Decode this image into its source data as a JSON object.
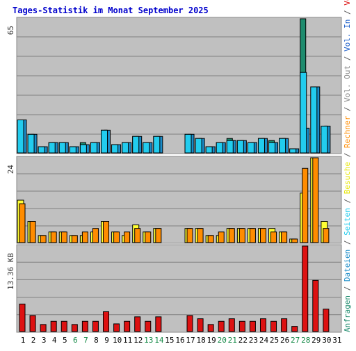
{
  "chart_data": {
    "type": "bar",
    "title": "Tages-Statistik im Monat September 2025",
    "categories": [
      "1",
      "2",
      "3",
      "4",
      "5",
      "6",
      "7",
      "8",
      "9",
      "10",
      "11",
      "12",
      "13",
      "14",
      "15",
      "16",
      "17",
      "18",
      "19",
      "20",
      "21",
      "22",
      "23",
      "24",
      "25",
      "26",
      "27",
      "28",
      "29",
      "30",
      "31"
    ],
    "weekend_days": [
      "6",
      "7",
      "13",
      "14",
      "20",
      "21",
      "27",
      "28"
    ],
    "panels": [
      {
        "id": "top",
        "scale_label": "65",
        "ymax": 65,
        "series": [
          {
            "name": "Anfragen",
            "color": "#1e8c6e",
            "values": [
              16,
              9,
              3,
              5,
              5,
              3,
              5,
              5,
              11,
              4,
              5,
              8,
              5,
              8,
              0,
              0,
              9,
              7,
              3,
              5,
              7,
              6,
              5,
              7,
              6,
              7,
              2,
              65,
              0,
              0,
              0
            ]
          },
          {
            "name": "Dateien",
            "color": "#1a8cc8",
            "values": [
              16,
              9,
              3,
              5,
              5,
              3,
              4,
              5,
              11,
              4,
              5,
              8,
              5,
              8,
              0,
              0,
              9,
              7,
              3,
              5,
              6,
              6,
              5,
              7,
              5,
              7,
              2,
              12,
              32,
              13,
              0
            ]
          },
          {
            "name": "Seiten",
            "color": "#22ccee",
            "values": [
              16,
              9,
              3,
              5,
              5,
              3,
              4,
              5,
              11,
              4,
              5,
              8,
              5,
              8,
              0,
              0,
              9,
              7,
              3,
              5,
              6,
              6,
              5,
              7,
              5,
              7,
              2,
              39,
              32,
              13,
              0
            ]
          }
        ]
      },
      {
        "id": "middle",
        "scale_label": "24",
        "ymax": 24,
        "series": [
          {
            "name": "Besuche",
            "color": "#ffff33",
            "values": [
              12,
              6,
              2,
              3,
              3,
              2,
              2,
              3,
              6,
              3,
              2,
              5,
              3,
              4,
              0,
              0,
              4,
              4,
              2,
              2,
              4,
              4,
              4,
              4,
              4,
              3,
              1,
              14,
              24,
              6,
              0
            ]
          },
          {
            "name": "Rechner",
            "color": "#ff8c00",
            "values": [
              11,
              6,
              2,
              3,
              3,
              2,
              3,
              4,
              6,
              3,
              3,
              4,
              3,
              4,
              0,
              0,
              4,
              4,
              2,
              3,
              4,
              4,
              4,
              4,
              3,
              3,
              1,
              21,
              24,
              4,
              0
            ]
          }
        ]
      },
      {
        "id": "bottom",
        "scale_label": "13.36 KB",
        "ymax": 13.36,
        "series": [
          {
            "name": "Volumen",
            "color": "#dd1111",
            "values": [
              4.3,
              2.5,
              1.1,
              1.6,
              1.6,
              1.1,
              1.6,
              1.6,
              3.1,
              1.2,
              1.6,
              2.3,
              1.6,
              2.3,
              0,
              0,
              2.5,
              2.0,
              1.1,
              1.6,
              2.0,
              1.6,
              1.6,
              2.0,
              1.6,
              2.0,
              0.8,
              13.36,
              8.0,
              3.5,
              0
            ]
          }
        ]
      }
    ],
    "right_legend": [
      {
        "text": "Anfragen",
        "color": "#1e8c6e"
      },
      {
        "text": " / ",
        "color": "#555555"
      },
      {
        "text": "Dateien",
        "color": "#1a8cc8"
      },
      {
        "text": " / ",
        "color": "#555555"
      },
      {
        "text": "Seiten",
        "color": "#22ccee"
      },
      {
        "text": " / ",
        "color": "#555555"
      },
      {
        "text": "Besuche",
        "color": "#e6e600"
      },
      {
        "text": " / ",
        "color": "#555555"
      },
      {
        "text": "Rechner",
        "color": "#ff8c00"
      },
      {
        "text": " / ",
        "color": "#555555"
      },
      {
        "text": "Vol. Out",
        "color": "#8c8c8c"
      },
      {
        "text": " / ",
        "color": "#555555"
      },
      {
        "text": "Vol. In",
        "color": "#1a5cc8"
      },
      {
        "text": " / ",
        "color": "#555555"
      },
      {
        "text": "Volumen",
        "color": "#dd1111"
      }
    ],
    "colors": {
      "title": "#0000cc",
      "plot_bg": "#c0c0c0",
      "weekend_label": "#118844",
      "weekday_label": "#000000"
    }
  }
}
